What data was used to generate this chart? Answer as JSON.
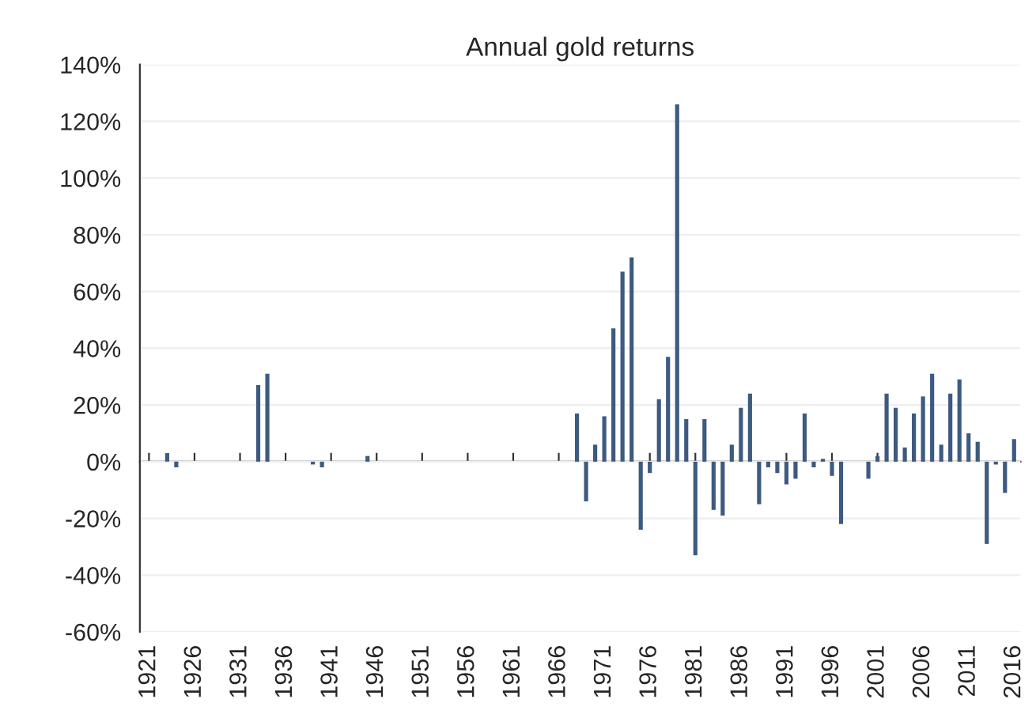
{
  "chart_data": {
    "type": "bar",
    "title": "Annual gold returns",
    "categories": [
      "1921",
      null,
      null,
      null,
      null,
      "1926",
      null,
      null,
      null,
      null,
      "1931",
      null,
      null,
      null,
      null,
      "1936",
      null,
      null,
      null,
      null,
      "1941",
      null,
      null,
      null,
      null,
      "1946",
      null,
      null,
      null,
      null,
      "1951",
      null,
      null,
      null,
      null,
      "1956",
      null,
      null,
      null,
      null,
      "1961",
      null,
      null,
      null,
      null,
      "1966",
      null,
      null,
      null,
      null,
      "1971",
      null,
      null,
      null,
      null,
      "1976",
      null,
      null,
      null,
      null,
      "1981",
      null,
      null,
      null,
      null,
      "1986",
      null,
      null,
      null,
      null,
      "1991",
      null,
      null,
      null,
      null,
      "1996",
      null,
      null,
      null,
      null,
      "2001",
      null,
      null,
      null,
      null,
      "2006",
      null,
      null,
      null,
      null,
      "2011",
      null,
      null,
      null,
      null,
      "2016"
    ],
    "values": [
      0,
      0,
      3,
      -2,
      0,
      0,
      0,
      0,
      0,
      0,
      0,
      0,
      27,
      31,
      0,
      0,
      0,
      0,
      -1,
      -2,
      0,
      0,
      0,
      0,
      2,
      0,
      0,
      0,
      0,
      0,
      0,
      0,
      0,
      0,
      0,
      0,
      0,
      0,
      0,
      0,
      0,
      0,
      0,
      0,
      0,
      0,
      0,
      17,
      -14,
      6,
      16,
      47,
      67,
      72,
      -24,
      -4,
      22,
      37,
      126,
      15,
      -33,
      15,
      -17,
      -19,
      6,
      19,
      24,
      -15,
      -2,
      -4,
      -8,
      -6,
      17,
      -2,
      1,
      -5,
      -22,
      0,
      0,
      -6,
      2,
      24,
      19,
      5,
      17,
      23,
      31,
      6,
      24,
      29,
      10,
      7,
      -29,
      -1,
      -11,
      8
    ],
    "color": "#3d5a80",
    "ylim": [
      -60,
      140
    ],
    "yticks": [
      {
        "value": -60,
        "label": "-60%"
      },
      {
        "value": -40,
        "label": "-40%"
      },
      {
        "value": -20,
        "label": "-20%"
      },
      {
        "value": 0,
        "label": "0%"
      },
      {
        "value": 20,
        "label": "20%"
      },
      {
        "value": 40,
        "label": "40%"
      },
      {
        "value": 60,
        "label": "60%"
      },
      {
        "value": 80,
        "label": "80%"
      },
      {
        "value": 100,
        "label": "100%"
      },
      {
        "value": 120,
        "label": "120%"
      },
      {
        "value": 140,
        "label": "140%"
      }
    ],
    "grid": "y"
  }
}
